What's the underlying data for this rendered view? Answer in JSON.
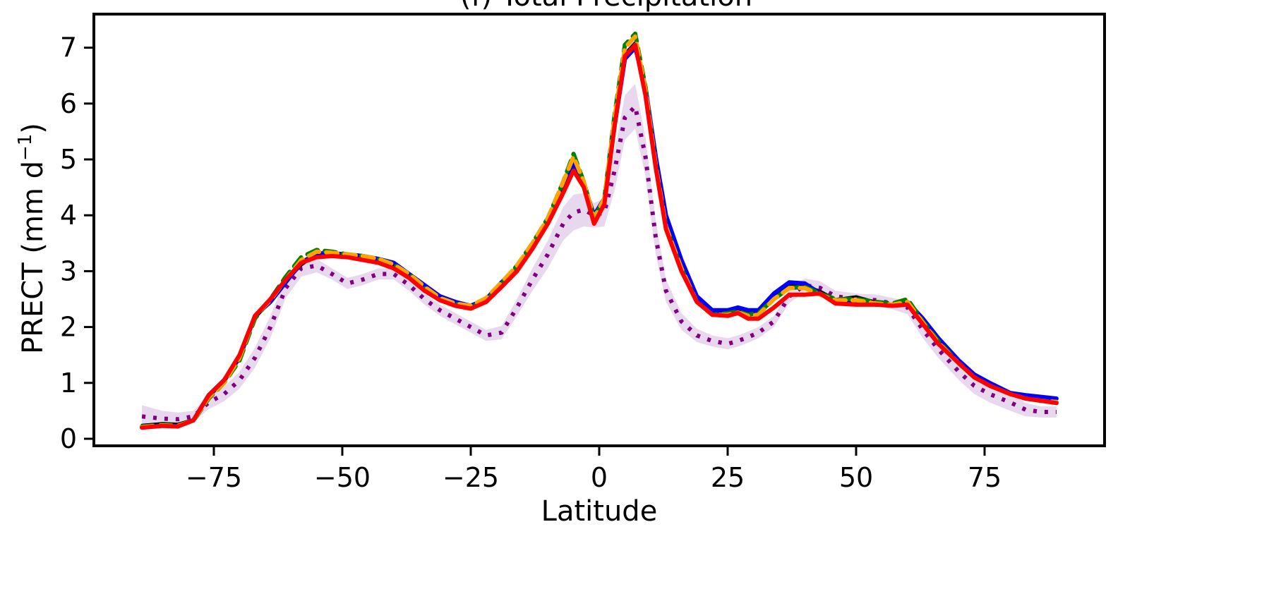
{
  "chart_data": {
    "type": "line",
    "title": "(f) Total Precipitation",
    "xlabel": "Latitude",
    "ylabel": "PRECT (mm d",
    "ylabel_sup": "−1",
    "ylabel_close": ")",
    "xlim": [
      -90,
      90
    ],
    "ylim": [
      0,
      7.5
    ],
    "x_ticks": [
      -75,
      -50,
      -25,
      0,
      25,
      50,
      75
    ],
    "x_tick_labels": [
      "−75",
      "−50",
      "−25",
      "0",
      "25",
      "50",
      "75"
    ],
    "y_ticks": [
      0,
      1,
      2,
      3,
      4,
      5,
      6,
      7
    ],
    "y_tick_labels": [
      "0",
      "1",
      "2",
      "3",
      "4",
      "5",
      "6",
      "7"
    ],
    "grid": false,
    "legend": "none",
    "x": [
      -89,
      -85,
      -82,
      -79,
      -76,
      -73,
      -70,
      -67,
      -64,
      -61,
      -58,
      -55,
      -52,
      -49,
      -46,
      -43,
      -40,
      -37,
      -34,
      -31,
      -28,
      -25,
      -22,
      -19,
      -16,
      -13,
      -10,
      -7,
      -5,
      -3,
      -1,
      1,
      3,
      5,
      7,
      9,
      11,
      13,
      16,
      19,
      22,
      25,
      27,
      29,
      31,
      34,
      37,
      40,
      43,
      46,
      50,
      54,
      57,
      60,
      63,
      66,
      70,
      73,
      76,
      80,
      83,
      86,
      89
    ],
    "series": [
      {
        "color": "#000000",
        "dash": "none",
        "width": 3,
        "values": [
          0.25,
          0.28,
          0.27,
          0.35,
          0.75,
          1.0,
          1.45,
          2.15,
          2.45,
          2.8,
          3.1,
          3.3,
          3.3,
          3.28,
          3.25,
          3.2,
          3.1,
          2.95,
          2.75,
          2.55,
          2.45,
          2.35,
          2.5,
          2.75,
          3.0,
          3.45,
          3.9,
          4.5,
          4.85,
          4.55,
          3.95,
          4.3,
          5.7,
          6.9,
          7.1,
          6.2,
          4.9,
          3.8,
          3.1,
          2.5,
          2.25,
          2.25,
          2.3,
          2.25,
          2.28,
          2.55,
          2.75,
          2.75,
          2.65,
          2.5,
          2.55,
          2.45,
          2.4,
          2.4,
          2.05,
          1.7,
          1.35,
          1.1,
          0.95,
          0.8,
          0.72,
          0.68,
          0.65
        ]
      },
      {
        "color": "#0000ff",
        "dash": "none",
        "width": 6,
        "values": [
          0.2,
          0.24,
          0.23,
          0.33,
          0.78,
          1.05,
          1.45,
          2.2,
          2.45,
          2.8,
          3.15,
          3.32,
          3.32,
          3.3,
          3.27,
          3.22,
          3.15,
          2.95,
          2.75,
          2.55,
          2.45,
          2.38,
          2.5,
          2.8,
          3.05,
          3.45,
          3.9,
          4.55,
          4.95,
          4.55,
          4.0,
          4.3,
          5.6,
          6.8,
          7.0,
          6.3,
          5.05,
          4.0,
          3.2,
          2.55,
          2.3,
          2.3,
          2.35,
          2.3,
          2.3,
          2.6,
          2.8,
          2.78,
          2.6,
          2.45,
          2.45,
          2.4,
          2.4,
          2.45,
          2.15,
          1.8,
          1.4,
          1.15,
          1.0,
          0.82,
          0.78,
          0.75,
          0.72
        ]
      },
      {
        "color": "#008000",
        "dash": "16 10",
        "width": 6,
        "values": [
          0.22,
          0.25,
          0.24,
          0.32,
          0.72,
          1.0,
          1.4,
          2.15,
          2.5,
          2.9,
          3.25,
          3.38,
          3.35,
          3.3,
          3.27,
          3.22,
          3.12,
          2.95,
          2.7,
          2.5,
          2.42,
          2.37,
          2.48,
          2.78,
          3.1,
          3.5,
          3.95,
          4.6,
          5.1,
          4.6,
          3.95,
          4.3,
          5.8,
          7.05,
          7.25,
          6.3,
          4.9,
          3.8,
          3.05,
          2.45,
          2.22,
          2.25,
          2.28,
          2.22,
          2.25,
          2.5,
          2.7,
          2.72,
          2.6,
          2.5,
          2.5,
          2.45,
          2.42,
          2.5,
          2.1,
          1.75,
          1.35,
          1.1,
          0.95,
          0.8,
          0.72,
          0.68,
          0.66
        ]
      },
      {
        "color": "#ffa500",
        "dash": "16 10",
        "width": 6,
        "values": [
          0.21,
          0.24,
          0.23,
          0.33,
          0.74,
          1.0,
          1.45,
          2.2,
          2.48,
          2.85,
          3.2,
          3.35,
          3.33,
          3.3,
          3.27,
          3.22,
          3.12,
          2.95,
          2.72,
          2.52,
          2.42,
          2.38,
          2.52,
          2.8,
          3.1,
          3.5,
          3.95,
          4.6,
          5.05,
          4.6,
          3.95,
          4.3,
          5.75,
          7.0,
          7.2,
          6.25,
          4.9,
          3.8,
          3.05,
          2.45,
          2.22,
          2.22,
          2.26,
          2.2,
          2.22,
          2.5,
          2.7,
          2.7,
          2.58,
          2.48,
          2.48,
          2.42,
          2.4,
          2.45,
          2.08,
          1.72,
          1.35,
          1.1,
          0.95,
          0.8,
          0.72,
          0.68,
          0.66
        ]
      },
      {
        "color": "#ff0000",
        "dash": "none",
        "width": 6,
        "values": [
          0.2,
          0.23,
          0.22,
          0.33,
          0.78,
          1.05,
          1.5,
          2.2,
          2.5,
          2.85,
          3.15,
          3.25,
          3.27,
          3.25,
          3.2,
          3.15,
          3.05,
          2.88,
          2.65,
          2.48,
          2.38,
          2.33,
          2.45,
          2.72,
          3.0,
          3.4,
          3.85,
          4.4,
          4.8,
          4.5,
          3.85,
          4.2,
          5.6,
          6.85,
          7.05,
          6.15,
          4.85,
          3.75,
          3.0,
          2.45,
          2.22,
          2.2,
          2.25,
          2.15,
          2.15,
          2.35,
          2.58,
          2.58,
          2.6,
          2.42,
          2.4,
          2.4,
          2.38,
          2.4,
          2.05,
          1.7,
          1.35,
          1.1,
          0.95,
          0.8,
          0.72,
          0.68,
          0.64
        ]
      },
      {
        "color": "#800080",
        "dash": "5 11",
        "width": 6,
        "values": [
          0.4,
          0.36,
          0.35,
          0.4,
          0.65,
          0.8,
          1.05,
          1.45,
          2.0,
          2.7,
          3.05,
          3.1,
          2.95,
          2.78,
          2.85,
          2.95,
          2.95,
          2.75,
          2.5,
          2.3,
          2.15,
          2.0,
          1.85,
          1.9,
          2.35,
          2.85,
          3.3,
          3.85,
          4.05,
          4.1,
          4.0,
          4.05,
          4.8,
          5.75,
          5.95,
          5.05,
          3.6,
          2.65,
          2.1,
          1.85,
          1.75,
          1.7,
          1.75,
          1.82,
          1.9,
          2.1,
          2.55,
          2.75,
          2.7,
          2.55,
          2.5,
          2.48,
          2.42,
          2.35,
          1.95,
          1.6,
          1.2,
          0.95,
          0.8,
          0.65,
          0.52,
          0.48,
          0.48
        ]
      }
    ],
    "spread_band": {
      "color": "#e8d8ee",
      "half_width": [
        0.2,
        0.14,
        0.12,
        0.1,
        0.12,
        0.13,
        0.15,
        0.18,
        0.2,
        0.18,
        0.15,
        0.12,
        0.1,
        0.1,
        0.1,
        0.1,
        0.1,
        0.1,
        0.1,
        0.1,
        0.1,
        0.1,
        0.1,
        0.12,
        0.15,
        0.2,
        0.25,
        0.3,
        0.32,
        0.3,
        0.22,
        0.25,
        0.35,
        0.4,
        0.4,
        0.35,
        0.3,
        0.2,
        0.15,
        0.12,
        0.1,
        0.1,
        0.1,
        0.1,
        0.1,
        0.1,
        0.12,
        0.12,
        0.12,
        0.1,
        0.1,
        0.1,
        0.1,
        0.12,
        0.15,
        0.15,
        0.15,
        0.15,
        0.15,
        0.15,
        0.12,
        0.1,
        0.1
      ]
    }
  }
}
